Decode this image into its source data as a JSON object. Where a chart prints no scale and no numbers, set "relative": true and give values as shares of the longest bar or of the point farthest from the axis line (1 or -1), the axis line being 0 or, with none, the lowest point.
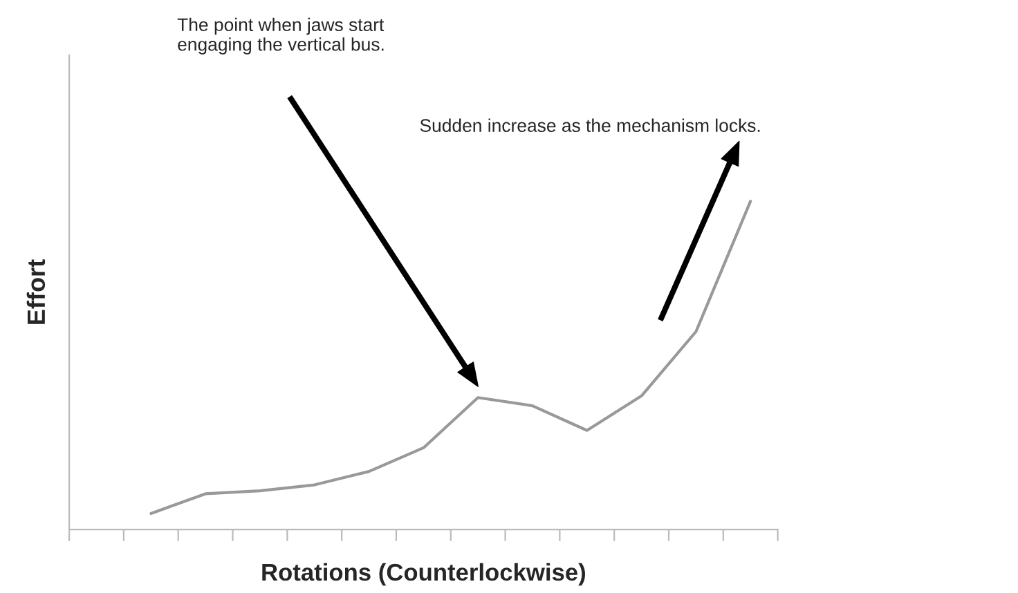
{
  "chart_data": {
    "type": "line",
    "relative": true,
    "xlabel": "Rotations (Counterlockwise)",
    "ylabel": "Effort",
    "categories": [
      null,
      null,
      null,
      null,
      null,
      null,
      null,
      null,
      null,
      null,
      null,
      null,
      null
    ],
    "series": [
      {
        "color": "#999999",
        "values": [
          null,
          0.049,
          0.109,
          0.118,
          0.136,
          0.177,
          0.249,
          0.402,
          0.377,
          0.302,
          0.407,
          0.603,
          1.0
        ]
      }
    ],
    "annotations": [
      "The point when jaws start\nengaging the vertical bus.",
      "Sudden increase as the mechanism locks."
    ],
    "grid": false,
    "legend": false
  }
}
